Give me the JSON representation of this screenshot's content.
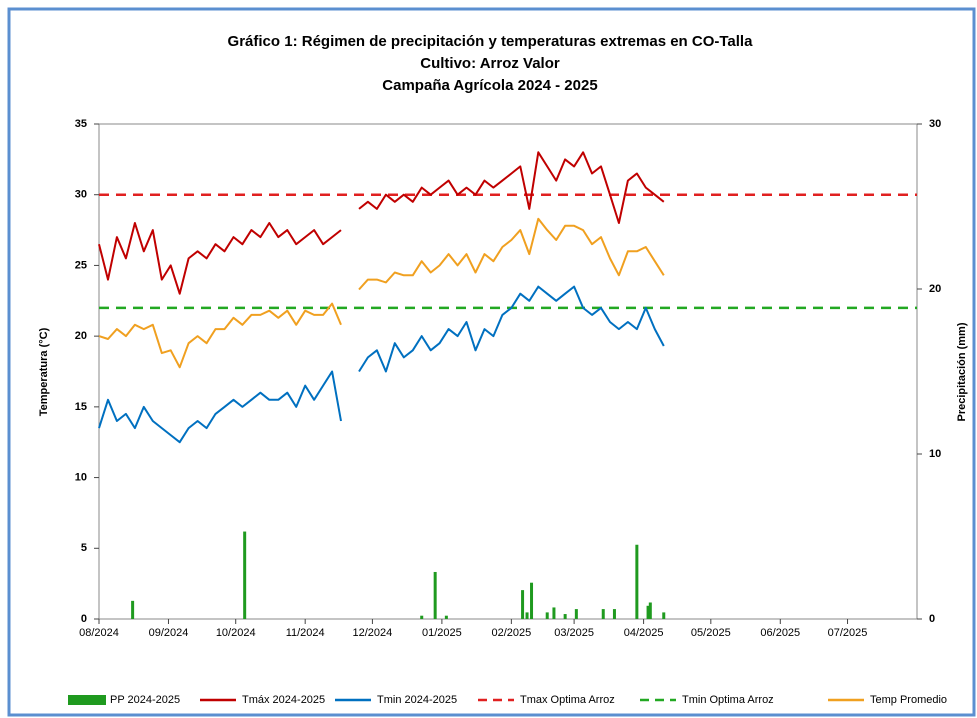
{
  "chart_data": {
    "type": "line",
    "title": "Gráfico 1:  Régimen de precipitación y temperaturas extremas en CO-Talla",
    "subtitle": "Cultivo: Arroz Valor",
    "subtitle2": "Campaña Agrícola 2024 - 2025",
    "y_label": "Temperatura (°C)",
    "y2_label": "Precipitación (mm)",
    "xlim": [
      0,
      365
    ],
    "xticks": [
      {
        "value": 0,
        "label": "08/2024"
      },
      {
        "value": 31,
        "label": "09/2024"
      },
      {
        "value": 61,
        "label": "10/2024"
      },
      {
        "value": 92,
        "label": "11/2024"
      },
      {
        "value": 122,
        "label": "12/2024"
      },
      {
        "value": 153,
        "label": "01/2025"
      },
      {
        "value": 184,
        "label": "02/2025"
      },
      {
        "value": 212,
        "label": "03/2025"
      },
      {
        "value": 243,
        "label": "04/2025"
      },
      {
        "value": 273,
        "label": "05/2025"
      },
      {
        "value": 304,
        "label": "06/2025"
      },
      {
        "value": 334,
        "label": "07/2025"
      }
    ],
    "ylim": [
      0,
      35
    ],
    "yticks": [
      0,
      5,
      10,
      15,
      20,
      25,
      30,
      35
    ],
    "y2lim": [
      0,
      30
    ],
    "y2ticks": [
      0,
      10,
      20,
      30
    ],
    "x": [
      0,
      4,
      8,
      12,
      16,
      20,
      24,
      28,
      32,
      36,
      40,
      44,
      48,
      52,
      56,
      60,
      64,
      68,
      72,
      76,
      80,
      84,
      88,
      92,
      96,
      100,
      104,
      108,
      112,
      116,
      120,
      124,
      128,
      132,
      136,
      140,
      144,
      148,
      152,
      156,
      160,
      164,
      168,
      172,
      176,
      180,
      184,
      188,
      192,
      196,
      200,
      204,
      208,
      212,
      216,
      220,
      224,
      228,
      232,
      236,
      240,
      244,
      248,
      252
    ],
    "series": [
      {
        "name": "PP 2024-2025",
        "type": "bar",
        "axis": "y2",
        "color": "#1f9a1f",
        "x": [
          15,
          65,
          144,
          150,
          155,
          189,
          191,
          193,
          200,
          203,
          208,
          213,
          225,
          230,
          240,
          245,
          246,
          252
        ],
        "values": [
          1.1,
          5.3,
          0.2,
          2.85,
          0.2,
          1.75,
          0.4,
          2.2,
          0.4,
          0.7,
          0.3,
          0.6,
          0.6,
          0.6,
          4.5,
          0.8,
          1.0,
          0.4
        ]
      },
      {
        "name": "Tmáx 2024-2025",
        "type": "line",
        "color": "#c00000",
        "values": [
          26.5,
          24,
          27,
          25.5,
          28,
          26,
          27.5,
          24,
          25,
          23,
          25.5,
          26,
          25.5,
          26.5,
          26,
          27,
          26.5,
          27.5,
          27,
          28,
          27,
          27.5,
          26.5,
          27,
          27.5,
          26.5,
          27,
          27.5,
          null,
          29,
          29.5,
          29,
          30,
          29.5,
          30,
          29.5,
          30.5,
          30,
          30.5,
          31,
          30,
          30.5,
          30,
          31,
          30.5,
          31,
          31.5,
          32,
          29,
          33,
          32,
          31,
          32.5,
          32,
          33,
          31.5,
          32,
          30,
          28,
          31,
          31.5,
          30.5,
          30,
          29.5
        ]
      },
      {
        "name": "Tmin 2024-2025",
        "type": "line",
        "color": "#0070c0",
        "values": [
          13.5,
          15.5,
          14,
          14.5,
          13.5,
          15,
          14,
          13.5,
          13,
          12.5,
          13.5,
          14,
          13.5,
          14.5,
          15,
          15.5,
          15,
          15.5,
          16,
          15.5,
          15.5,
          16,
          15,
          16.5,
          15.5,
          16.5,
          17.5,
          14,
          null,
          17.5,
          18.5,
          19,
          17.5,
          19.5,
          18.5,
          19,
          20,
          19,
          19.5,
          20.5,
          20,
          21,
          19,
          20.5,
          20,
          21.5,
          22,
          23,
          22.5,
          23.5,
          23,
          22.5,
          23,
          23.5,
          22,
          21.5,
          22,
          21,
          20.5,
          21,
          20.5,
          22,
          20.5,
          19.3
        ]
      },
      {
        "name": "Tmax Optima Arroz",
        "type": "hline",
        "color": "#e02020",
        "value": 30
      },
      {
        "name": "Tmin Optima Arroz",
        "type": "hline",
        "color": "#22a822",
        "value": 22
      },
      {
        "name": "Temp Promedio",
        "type": "line",
        "color": "#f0a020",
        "values": [
          20,
          19.8,
          20.5,
          20,
          20.8,
          20.5,
          20.8,
          18.8,
          19,
          17.8,
          19.5,
          20,
          19.5,
          20.5,
          20.5,
          21.3,
          20.8,
          21.5,
          21.5,
          21.8,
          21.3,
          21.8,
          20.8,
          21.8,
          21.5,
          21.5,
          22.3,
          20.8,
          null,
          23.3,
          24,
          24,
          23.8,
          24.5,
          24.3,
          24.3,
          25.3,
          24.5,
          25,
          25.8,
          25,
          25.8,
          24.5,
          25.8,
          25.3,
          26.3,
          26.8,
          27.5,
          25.8,
          28.3,
          27.5,
          26.8,
          27.8,
          27.8,
          27.5,
          26.5,
          27,
          25.5,
          24.3,
          26,
          26,
          26.3,
          25.3,
          24.3
        ]
      }
    ]
  }
}
